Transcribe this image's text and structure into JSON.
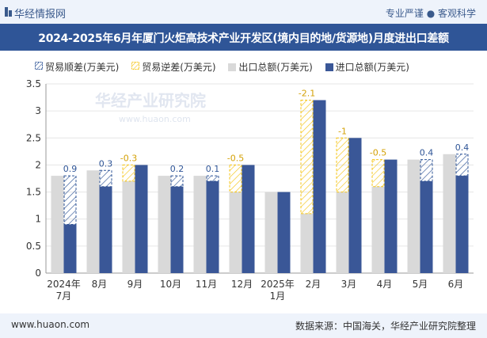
{
  "header": {
    "brand": "华经情报网",
    "slogan": "专业严谨 ● 客观科学"
  },
  "title": "2024-2025年6月年厦门火炬高技术产业开发区(境内目的地/货源地)月度进出口差额",
  "footer": {
    "website": "www.huaon.com",
    "source": "数据来源：中国海关，华经产业研究院整理"
  },
  "watermark": "华经产业研究院",
  "watermark_url": "www.huaon.com",
  "colors": {
    "surplus": "#2f5597",
    "deficit": "#f5c518",
    "export": "#d9d9d9",
    "import": "#3a5797"
  },
  "legend": {
    "surplus": "贸易顺差(万美元)",
    "deficit": "贸易逆差(万美元)",
    "export": "出口总额(万美元)",
    "import": "进口总额(万美元)"
  },
  "chart_data": {
    "type": "bar",
    "categories": [
      "2024年\n7月",
      "8月",
      "9月",
      "10月",
      "11月",
      "12月",
      "2025年\n1月",
      "2月",
      "3月",
      "4月",
      "5月",
      "6月"
    ],
    "series": [
      {
        "name": "出口总额(万美元)",
        "values": [
          1.8,
          1.9,
          1.7,
          1.8,
          1.8,
          1.5,
          1.5,
          1.1,
          1.5,
          1.6,
          2.1,
          2.2
        ]
      },
      {
        "name": "进口总额(万美元)",
        "values": [
          0.9,
          1.6,
          2.0,
          1.6,
          1.7,
          2.0,
          1.5,
          3.2,
          2.5,
          2.1,
          1.7,
          1.8
        ]
      }
    ],
    "balance": [
      0.9,
      0.3,
      -0.3,
      0.2,
      0.1,
      -0.5,
      0,
      -2.1,
      -1,
      -0.5,
      0.4,
      0.4
    ],
    "balance_labels": [
      "0.9",
      "0.3",
      "-0.3",
      "0.2",
      "0.1",
      "-0.5",
      "",
      "-2.1",
      "-1",
      "-0.5",
      "0.4",
      "0.4"
    ],
    "ylim": [
      0,
      3.5
    ],
    "yticks": [
      "0",
      "0.5",
      "1",
      "1.5",
      "2",
      "2.5",
      "3",
      "3.5"
    ],
    "legend_position": "top-left"
  }
}
